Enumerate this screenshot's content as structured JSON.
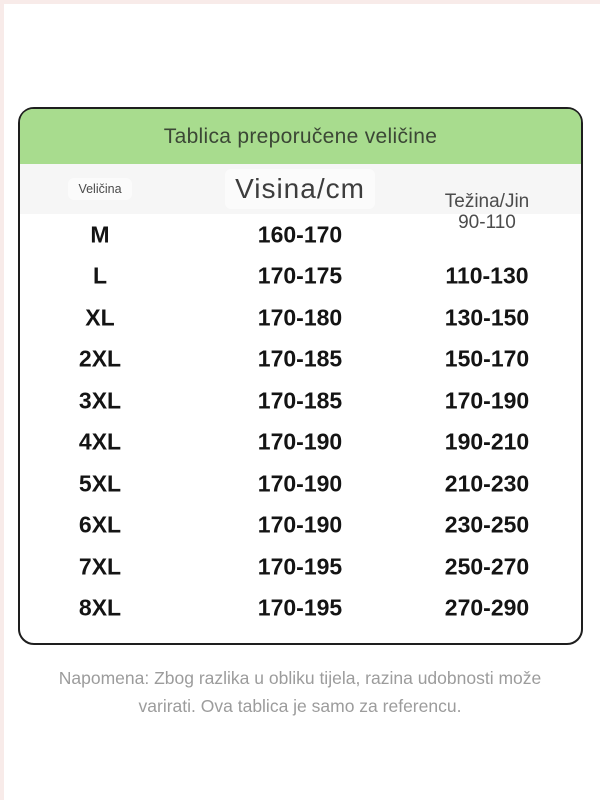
{
  "size_chart": {
    "title": "Tablica preporučene veličine",
    "header": {
      "col_size": "Veličina",
      "col_height": "Visina/cm",
      "col_weight": "Težina/Jin",
      "col_weight_sub": "90-110"
    },
    "rows": [
      {
        "size": "M",
        "height": "160-170",
        "weight": ""
      },
      {
        "size": "L",
        "height": "170-175",
        "weight": "110-130"
      },
      {
        "size": "XL",
        "height": "170-180",
        "weight": "130-150"
      },
      {
        "size": "2XL",
        "height": "170-185",
        "weight": "150-170"
      },
      {
        "size": "3XL",
        "height": "170-185",
        "weight": "170-190"
      },
      {
        "size": "4XL",
        "height": "170-190",
        "weight": "190-210"
      },
      {
        "size": "5XL",
        "height": "170-190",
        "weight": "210-230"
      },
      {
        "size": "6XL",
        "height": "170-190",
        "weight": "230-250"
      },
      {
        "size": "7XL",
        "height": "170-195",
        "weight": "250-270"
      },
      {
        "size": "8XL",
        "height": "170-195",
        "weight": "270-290"
      }
    ],
    "colors": {
      "header_green": "#a8dc8e",
      "title_text": "#3b4735",
      "header_band_gray": "#f6f6f6",
      "data_text": "#141414",
      "muted_header_text": "#4c4c4c",
      "note_text": "#9c9c9c",
      "card_border": "#1e1e1e"
    }
  },
  "note": "Napomena: Zbog razlika u obliku tijela, razina udobnosti može varirati. Ova tablica je samo za referencu.",
  "chart_data": {
    "type": "table",
    "title": "Tablica preporučene veličine",
    "columns": [
      "Veličina",
      "Visina/cm",
      "Težina/Jin"
    ],
    "rows": [
      [
        "M",
        "160-170",
        "90-110"
      ],
      [
        "L",
        "170-175",
        "110-130"
      ],
      [
        "XL",
        "170-180",
        "130-150"
      ],
      [
        "2XL",
        "170-185",
        "150-170"
      ],
      [
        "3XL",
        "170-185",
        "170-190"
      ],
      [
        "4XL",
        "170-190",
        "190-210"
      ],
      [
        "5XL",
        "170-190",
        "210-230"
      ],
      [
        "6XL",
        "170-190",
        "230-250"
      ],
      [
        "7XL",
        "170-195",
        "250-270"
      ],
      [
        "8XL",
        "170-195",
        "270-290"
      ]
    ],
    "note": "Napomena: Zbog razlika u obliku tijela, razina udobnosti može varirati. Ova tablica je samo za referencu."
  }
}
